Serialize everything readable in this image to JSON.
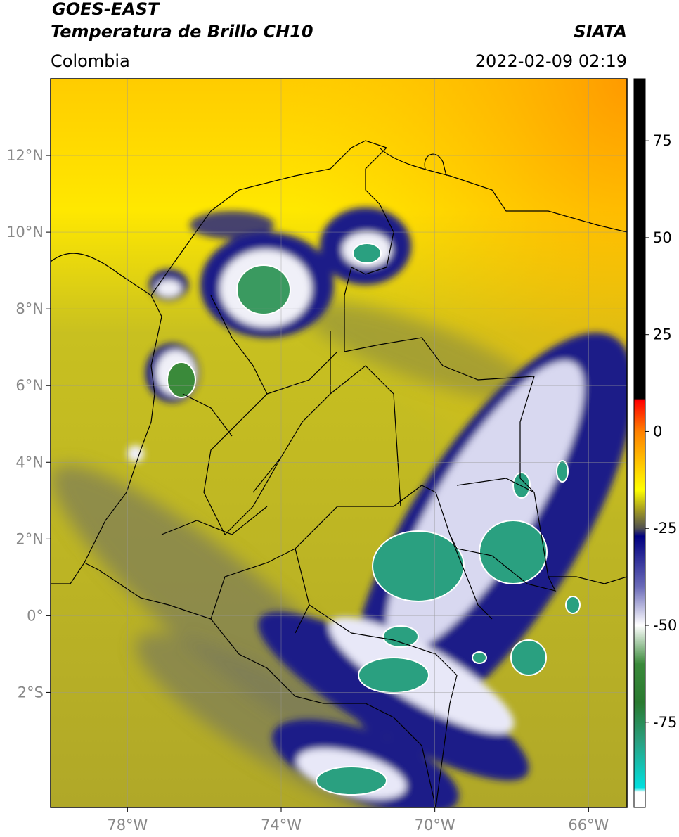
{
  "header": {
    "title": "GOES-EAST",
    "subtitle": "Temperatura de Brillo CH10",
    "source": "SIATA",
    "region": "Colombia",
    "datetime": "2022-02-09 02:19"
  },
  "map": {
    "xlim": [
      -80,
      -65
    ],
    "ylim": [
      -5,
      14
    ],
    "xticks": [
      {
        "value": -78,
        "label": "78°W"
      },
      {
        "value": -74,
        "label": "74°W"
      },
      {
        "value": -70,
        "label": "70°W"
      },
      {
        "value": -66,
        "label": "66°W"
      }
    ],
    "yticks": [
      {
        "value": 12,
        "label": "12°N"
      },
      {
        "value": 10,
        "label": "10°N"
      },
      {
        "value": 8,
        "label": "8°N"
      },
      {
        "value": 6,
        "label": "6°N"
      },
      {
        "value": 4,
        "label": "4°N"
      },
      {
        "value": 2,
        "label": "2°N"
      },
      {
        "value": 0,
        "label": "0°"
      },
      {
        "value": -2,
        "label": "2°S"
      }
    ],
    "grid": true
  },
  "colorbar": {
    "clim": [
      -97,
      91
    ],
    "ticks": [
      75,
      50,
      25,
      0,
      -25,
      -50,
      -75
    ],
    "stops": [
      {
        "value": 91,
        "color": "#000000"
      },
      {
        "value": 8.5,
        "color": "#000000"
      },
      {
        "value": 8,
        "color": "#ff0000"
      },
      {
        "value": 0,
        "color": "#ff8000"
      },
      {
        "value": -15,
        "color": "#ffff00"
      },
      {
        "value": -20,
        "color": "#a8a020"
      },
      {
        "value": -25,
        "color": "#505050"
      },
      {
        "value": -27,
        "color": "#000080"
      },
      {
        "value": -40,
        "color": "#6a6ab8"
      },
      {
        "value": -50,
        "color": "#ffffff"
      },
      {
        "value": -60,
        "color": "#3a8a3a"
      },
      {
        "value": -70,
        "color": "#2a7a30"
      },
      {
        "value": -80,
        "color": "#2aa080"
      },
      {
        "value": -92,
        "color": "#00e0e0"
      },
      {
        "value": -93,
        "color": "#ffffff"
      },
      {
        "value": -97,
        "color": "#ffffff"
      }
    ]
  }
}
